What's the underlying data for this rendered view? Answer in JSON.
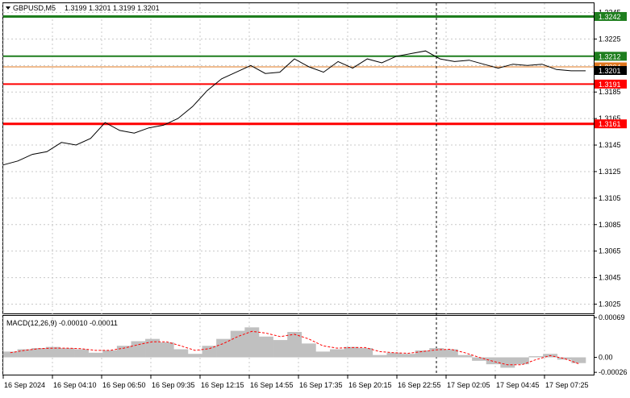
{
  "header": {
    "symbol_tf": "GBPUSD,M5",
    "ohlc": "1.3199 1.3201 1.3199 1.3201"
  },
  "macd_header": "MACD(12,26,9) -0.00010 -0.00011",
  "colors": {
    "green_level": "#1e7e1e",
    "red_level": "#ff0000",
    "price_line": "#000000",
    "macd_hist": "#c0c0c0",
    "macd_signal": "#ff0000",
    "grid": "#c8c8c8",
    "orange_line": "#e07820"
  },
  "chart_data": [
    {
      "type": "line",
      "title": "GBPUSD,M5",
      "ylim": [
        1.3018,
        1.3252
      ],
      "y_ticks": [
        "1.3245",
        "1.3225",
        "1.3205",
        "1.3185",
        "1.3165",
        "1.3145",
        "1.3125",
        "1.3105",
        "1.3085",
        "1.3065",
        "1.3045",
        "1.3025"
      ],
      "x_ticks": [
        "16 Sep 2024",
        "16 Sep 04:10",
        "16 Sep 06:50",
        "16 Sep 09:35",
        "16 Sep 12:15",
        "16 Sep 14:55",
        "16 Sep 17:35",
        "16 Sep 20:15",
        "16 Sep 22:55",
        "17 Sep 02:05",
        "17 Sep 04:45",
        "17 Sep 07:25"
      ],
      "price_series": [
        1.313,
        1.3133,
        1.3138,
        1.314,
        1.3147,
        1.3145,
        1.315,
        1.3162,
        1.3156,
        1.3154,
        1.3158,
        1.316,
        1.3165,
        1.3174,
        1.3186,
        1.3195,
        1.32,
        1.3205,
        1.3199,
        1.32,
        1.321,
        1.3204,
        1.32,
        1.3208,
        1.3203,
        1.321,
        1.3207,
        1.3212,
        1.3214,
        1.3216,
        1.321,
        1.3208,
        1.3209,
        1.3206,
        1.3203,
        1.3206,
        1.3205,
        1.3206,
        1.3202,
        1.3201,
        1.3201
      ],
      "levels": [
        {
          "value": 1.3242,
          "label": "1.3242",
          "kind": "green"
        },
        {
          "value": 1.3212,
          "label": "1.3212",
          "kind": "green"
        },
        {
          "value": 1.3204,
          "label": "1.3204",
          "kind": "orange"
        },
        {
          "value": 1.3191,
          "label": "1.3191",
          "kind": "red"
        },
        {
          "value": 1.3161,
          "label": "1.3161",
          "kind": "red"
        }
      ],
      "current_price": "1.3201"
    },
    {
      "type": "bar",
      "title": "MACD(12,26,9) -0.00010 -0.00011",
      "ylim": [
        -0.0003,
        0.00072
      ],
      "y_ticks": [
        "0.00069",
        "0.00",
        "-0.00026"
      ],
      "histogram": [
        0.0001,
        0.00014,
        0.00016,
        0.00018,
        0.00016,
        0.00014,
        8e-05,
        0.00012,
        0.0002,
        0.00028,
        0.00032,
        0.00026,
        0.00014,
        6e-05,
        0.0002,
        0.00032,
        0.00046,
        0.00052,
        0.00036,
        0.0003,
        0.00044,
        0.00024,
        0.0001,
        0.00014,
        0.00018,
        0.00016,
        4e-05,
        8e-05,
        6e-05,
        0.00012,
        0.00016,
        0.00014,
        4e-05,
        -6e-05,
        -0.00012,
        -0.00018,
        -0.00012,
        2e-05,
        6e-05,
        -4e-05,
        -0.0001
      ],
      "signal": [
        8e-05,
        0.00012,
        0.00015,
        0.00016,
        0.00016,
        0.00015,
        0.00012,
        0.00012,
        0.00016,
        0.00022,
        0.00027,
        0.00027,
        0.0002,
        0.00012,
        0.00015,
        0.00024,
        0.00036,
        0.00045,
        0.00042,
        0.00036,
        0.0004,
        0.00032,
        0.0002,
        0.00016,
        0.00017,
        0.00017,
        0.0001,
        8e-05,
        7e-05,
        0.0001,
        0.00013,
        0.00014,
        8e-05,
        0,
        -7e-05,
        -0.00013,
        -0.00013,
        -4e-05,
        3e-05,
        -2e-05,
        -0.00011
      ]
    }
  ]
}
